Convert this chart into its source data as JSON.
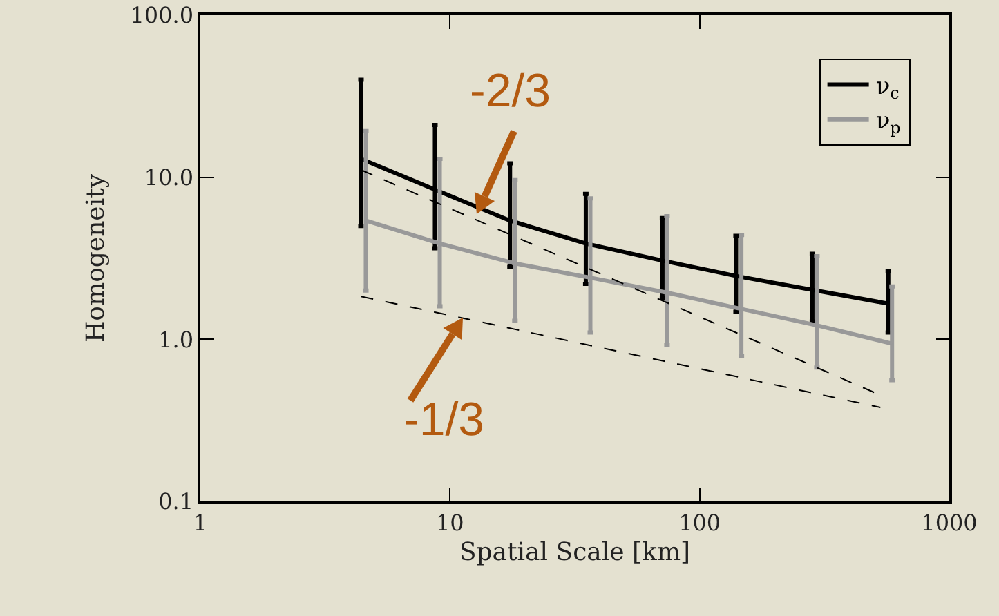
{
  "chart_data": {
    "type": "line",
    "xlabel": "Spatial Scale [km]",
    "ylabel": "Homogeneity",
    "log": "xy",
    "xlim": [
      1,
      1000
    ],
    "xticks": [
      1,
      10,
      100,
      1000
    ],
    "ylim": [
      0.1,
      100
    ],
    "yticks": [
      {
        "value": 0.1,
        "label": "0.1"
      },
      {
        "value": 1,
        "label": "1.0"
      },
      {
        "value": 10,
        "label": "10.0"
      },
      {
        "value": 100,
        "label": "100.0"
      }
    ],
    "grid": false,
    "legend": "top right",
    "series": [
      {
        "name": "ν$_{c}$",
        "color": "#000000",
        "x": [
          4.4,
          8.7,
          17.4,
          35,
          71,
          140,
          283,
          570
        ],
        "values": [
          13,
          8.4,
          5.4,
          3.9,
          3.06,
          2.46,
          2.02,
          1.66
        ],
        "errors": [
          [
            5,
            40
          ],
          [
            3.65,
            21
          ],
          [
            2.8,
            12.2
          ],
          [
            2.2,
            7.9
          ],
          [
            1.8,
            5.6
          ],
          [
            1.48,
            4.35
          ],
          [
            1.29,
            3.37
          ],
          [
            1.1,
            2.63
          ]
        ]
      },
      {
        "name": "ν$_{p}$",
        "color": "#999999",
        "x": [
          4.6,
          9.1,
          18.2,
          36.5,
          74,
          147,
          295,
          590
        ],
        "values": [
          5.4,
          3.9,
          2.94,
          2.4,
          1.94,
          1.54,
          1.22,
          0.94
        ],
        "errors": [
          [
            2,
            19.3
          ],
          [
            1.6,
            13
          ],
          [
            1.3,
            9.6
          ],
          [
            1.1,
            7.4
          ],
          [
            0.92,
            5.75
          ],
          [
            0.79,
            4.4
          ],
          [
            0.67,
            3.26
          ],
          [
            0.56,
            2.12
          ]
        ]
      },
      {
        "type": "line",
        "color": "#000000",
        "line_style": "dashed",
        "x": [
          4.4,
          500
        ],
        "values": [
          11.1,
          0.47
        ]
      },
      {
        "type": "line",
        "color": "#000000",
        "line_style": "dashed",
        "x": [
          4.4,
          530
        ],
        "values": [
          1.84,
          0.38
        ]
      }
    ],
    "annotations": [
      "-2/3",
      "-1/3"
    ]
  }
}
